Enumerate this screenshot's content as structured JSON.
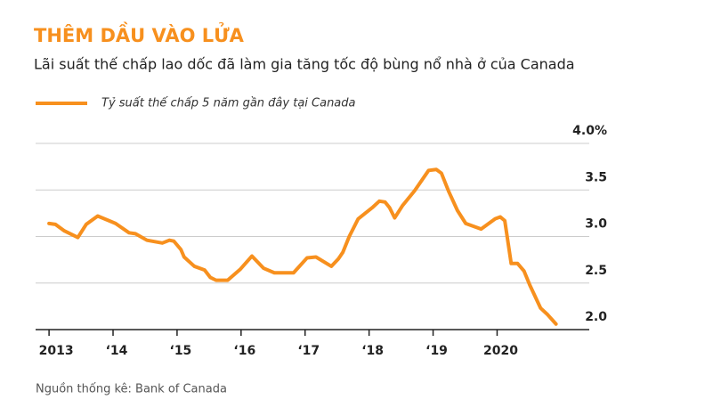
{
  "chart_data": {
    "type": "line",
    "title": "THÊM DẦU VÀO LỬA",
    "subtitle": "Lãi suất thế chấp lao dốc đã làm gia tăng tốc độ bùng nổ nhà ở của Canada",
    "source": "Nguồn thống kê: Bank of Canada",
    "x": [
      2013.0,
      2013.1,
      2013.24,
      2013.45,
      2013.58,
      2013.76,
      2014.04,
      2014.25,
      2014.35,
      2014.53,
      2014.77,
      2014.88,
      2014.95,
      2015.06,
      2015.11,
      2015.27,
      2015.43,
      2015.52,
      2015.61,
      2015.79,
      2015.99,
      2016.17,
      2016.35,
      2016.52,
      2016.82,
      2017.03,
      2017.17,
      2017.41,
      2017.52,
      2017.59,
      2017.69,
      2017.83,
      2018.05,
      2018.16,
      2018.25,
      2018.32,
      2018.4,
      2018.52,
      2018.71,
      2018.93,
      2019.05,
      2019.13,
      2019.24,
      2019.38,
      2019.51,
      2019.75,
      2019.97,
      2020.05,
      2020.12,
      2020.22,
      2020.32,
      2020.42,
      2020.51,
      2020.68,
      2020.79,
      2020.92
    ],
    "series": [
      {
        "name": "Tỷ suất thế chấp 5 năm gần đây tại Canada",
        "color": "#f7901e",
        "values": [
          3.14,
          3.13,
          3.06,
          2.99,
          3.13,
          3.22,
          3.14,
          3.04,
          3.03,
          2.96,
          2.93,
          2.96,
          2.95,
          2.86,
          2.78,
          2.68,
          2.64,
          2.56,
          2.53,
          2.53,
          2.65,
          2.79,
          2.66,
          2.61,
          2.61,
          2.77,
          2.78,
          2.68,
          2.76,
          2.83,
          3.0,
          3.19,
          3.31,
          3.38,
          3.37,
          3.31,
          3.2,
          3.33,
          3.49,
          3.71,
          3.72,
          3.68,
          3.49,
          3.28,
          3.14,
          3.08,
          3.19,
          3.21,
          3.17,
          2.71,
          2.71,
          2.63,
          2.48,
          2.23,
          2.16,
          2.06
        ]
      }
    ],
    "xlim": [
      2012.79,
      2021.44
    ],
    "xticks": [
      2013,
      {
        "value": 2014,
        "label": "‘14"
      },
      {
        "value": 2015,
        "label": "‘15"
      },
      {
        "value": 2016,
        "label": "‘16"
      },
      {
        "value": 2017,
        "label": "‘17"
      },
      {
        "value": 2018,
        "label": "‘18"
      },
      {
        "value": 2019,
        "label": "‘19"
      },
      2020
    ],
    "ylim": [
      2,
      4
    ],
    "yticks": [
      {
        "value": 2,
        "label": "2.0"
      },
      {
        "value": 2.5,
        "label": "2.5"
      },
      {
        "value": 3,
        "label": "3.0"
      },
      {
        "value": 3.5,
        "label": "3.5"
      },
      {
        "value": 4,
        "label": "4.0%"
      }
    ],
    "grid": true
  }
}
